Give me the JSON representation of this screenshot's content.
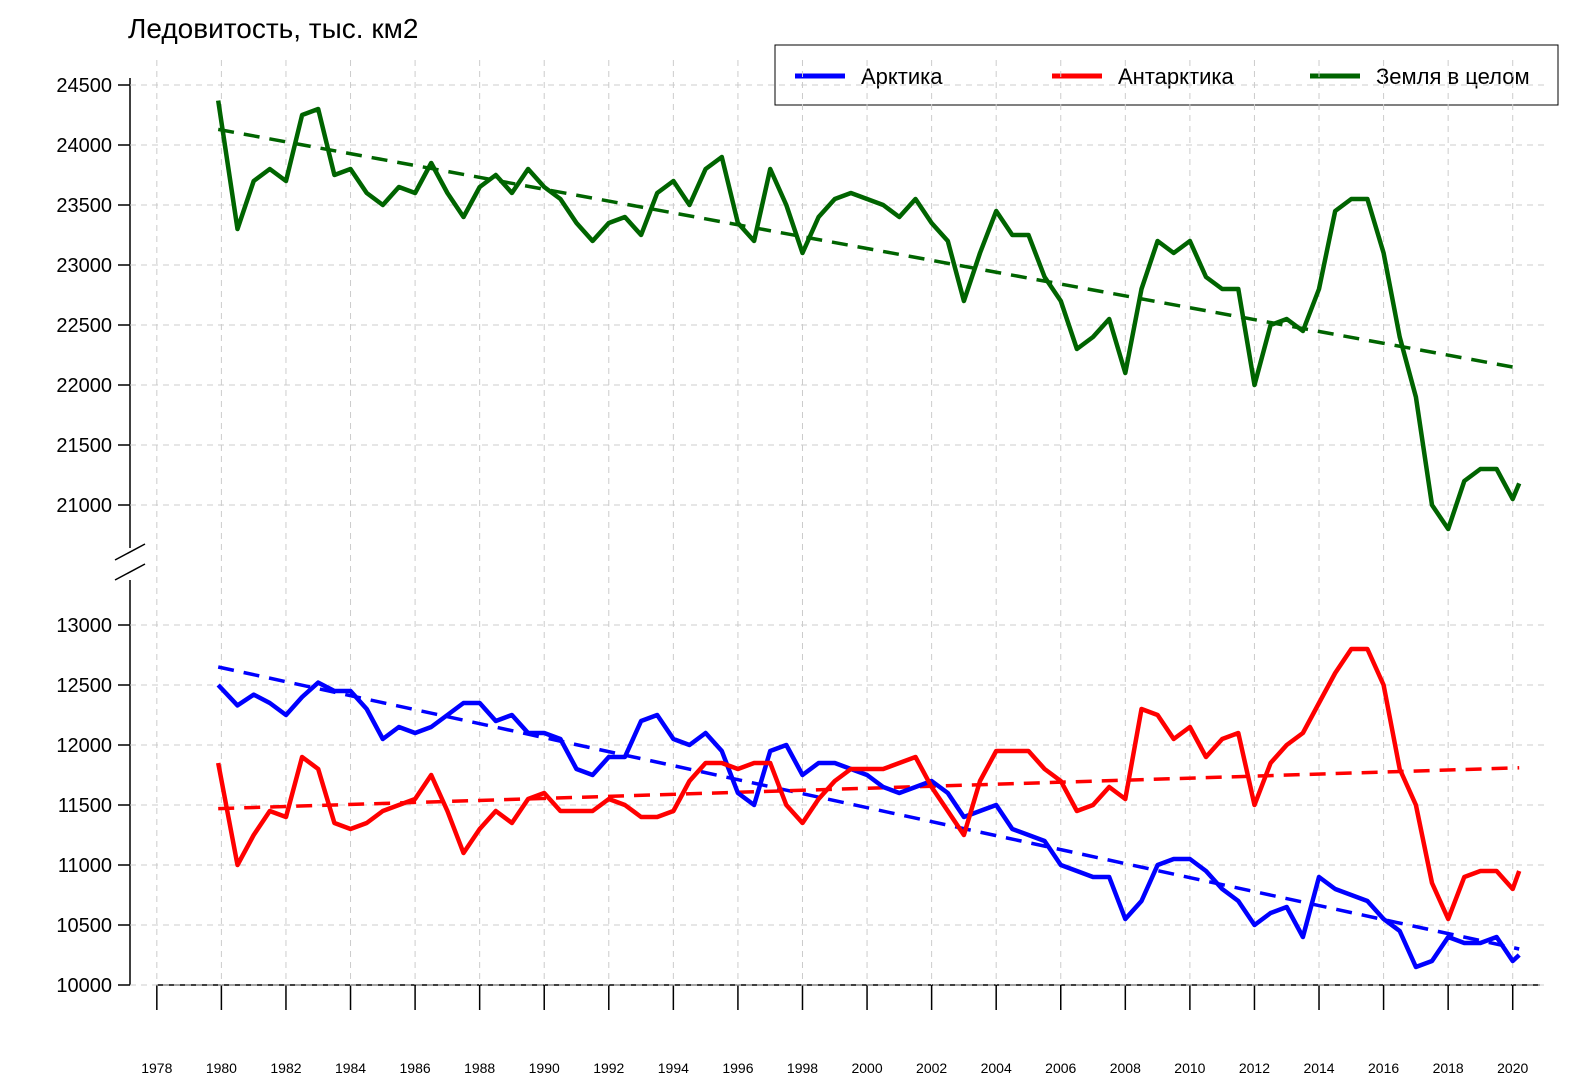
{
  "chart_data": {
    "type": "line",
    "title": "Ледовитость, тыс. км2",
    "x": [
      1979.9,
      1980.5,
      1981,
      1981.5,
      1982,
      1982.5,
      1983,
      1983.5,
      1984,
      1984.5,
      1985,
      1985.5,
      1986,
      1986.5,
      1987,
      1987.5,
      1988,
      1988.5,
      1989,
      1989.5,
      1990,
      1990.5,
      1991,
      1991.5,
      1992,
      1992.5,
      1993,
      1993.5,
      1994,
      1994.5,
      1995,
      1995.5,
      1996,
      1996.5,
      1997,
      1997.5,
      1998,
      1998.5,
      1999,
      1999.5,
      2000,
      2000.5,
      2001,
      2001.5,
      2002,
      2002.5,
      2003,
      2003.5,
      2004,
      2004.5,
      2005,
      2005.5,
      2006,
      2006.5,
      2007,
      2007.5,
      2008,
      2008.5,
      2009,
      2009.5,
      2010,
      2010.5,
      2011,
      2011.5,
      2012,
      2012.5,
      2013,
      2013.5,
      2014,
      2014.5,
      2015,
      2015.5,
      2016,
      2016.5,
      2017,
      2017.5,
      2018,
      2018.5,
      2019,
      2019.5,
      2020,
      2020.2
    ],
    "series": [
      {
        "name": "Арктика",
        "color": "#0000ff",
        "values": [
          12500,
          12330,
          12420,
          12350,
          12250,
          12400,
          12520,
          12450,
          12450,
          12300,
          12050,
          12150,
          12100,
          12150,
          12250,
          12350,
          12350,
          12200,
          12250,
          12100,
          12100,
          12050,
          11800,
          11750,
          11900,
          11900,
          12200,
          12250,
          12050,
          12000,
          12100,
          11950,
          11600,
          11500,
          11950,
          12000,
          11750,
          11850,
          11850,
          11800,
          11750,
          11650,
          11600,
          11650,
          11700,
          11600,
          11400,
          11450,
          11500,
          11300,
          11250,
          11200,
          11000,
          10950,
          10900,
          10900,
          10550,
          10700,
          11000,
          11050,
          11050,
          10950,
          10800,
          10700,
          10500,
          10600,
          10650,
          10400,
          10900,
          10800,
          10750,
          10700,
          10550,
          10450,
          10150,
          10200,
          10400,
          10350,
          10350,
          10400,
          10200,
          10250
        ]
      },
      {
        "name": "Антарктика",
        "color": "#ff0000",
        "values": [
          11850,
          11000,
          11250,
          11450,
          11400,
          11900,
          11800,
          11350,
          11300,
          11350,
          11450,
          11500,
          11550,
          11750,
          11450,
          11100,
          11300,
          11450,
          11350,
          11550,
          11600,
          11450,
          11450,
          11450,
          11550,
          11500,
          11400,
          11400,
          11450,
          11700,
          11850,
          11850,
          11800,
          11850,
          11850,
          11500,
          11350,
          11550,
          11700,
          11800,
          11800,
          11800,
          11850,
          11900,
          11650,
          11450,
          11250,
          11700,
          11950,
          11950,
          11950,
          11800,
          11700,
          11450,
          11500,
          11650,
          11550,
          12300,
          12250,
          12050,
          12150,
          11900,
          12050,
          12100,
          11500,
          11850,
          12000,
          12100,
          12350,
          12600,
          12800,
          12800,
          12500,
          11800,
          11500,
          10850,
          10550,
          10900,
          10950,
          10950,
          10800,
          10950
        ]
      },
      {
        "name": "Земля в целом",
        "color": "#006400",
        "axis": "y2",
        "values": [
          24370,
          23300,
          23700,
          23800,
          23700,
          24250,
          24300,
          23750,
          23800,
          23600,
          23500,
          23650,
          23600,
          23850,
          23600,
          23400,
          23650,
          23750,
          23600,
          23800,
          23650,
          23550,
          23350,
          23200,
          23350,
          23400,
          23250,
          23600,
          23700,
          23500,
          23800,
          23900,
          23350,
          23200,
          23800,
          23500,
          23100,
          23400,
          23550,
          23600,
          23550,
          23500,
          23400,
          23550,
          23350,
          23200,
          22700,
          23100,
          23450,
          23250,
          23250,
          22900,
          22700,
          22300,
          22400,
          22550,
          22100,
          22800,
          23200,
          23100,
          23200,
          22900,
          22800,
          22800,
          22000,
          22500,
          22550,
          22450,
          22800,
          23450,
          23550,
          23550,
          23100,
          22400,
          21900,
          21000,
          20800,
          21200,
          21300,
          21300,
          21050,
          21180
        ]
      }
    ],
    "trends": [
      {
        "color": "#0000ff",
        "x": [
          1979.9,
          2020.2
        ],
        "values": [
          12650,
          10300
        ]
      },
      {
        "color": "#ff0000",
        "x": [
          1979.9,
          2020.2
        ],
        "values": [
          11470,
          11810
        ]
      },
      {
        "color": "#006400",
        "axis": "y2",
        "x": [
          1979.9,
          2020.2
        ],
        "values": [
          24130,
          22140
        ]
      }
    ],
    "xlim": [
      1977.2,
      2021
    ],
    "xticks": [
      1978,
      1980,
      1982,
      1984,
      1986,
      1988,
      1990,
      1992,
      1994,
      1996,
      1998,
      2000,
      2002,
      2004,
      2006,
      2008,
      2010,
      2012,
      2014,
      2016,
      2018,
      2020
    ],
    "ylim": [
      10000,
      13250
    ],
    "yticks": [
      10000,
      10500,
      11000,
      11500,
      12000,
      12500,
      13000
    ],
    "y2lim": [
      20500,
      24750
    ],
    "y2ticks": [
      21000,
      21500,
      22000,
      22500,
      23000,
      23500,
      24000,
      24500
    ],
    "grid": true,
    "legend": "top-right"
  }
}
